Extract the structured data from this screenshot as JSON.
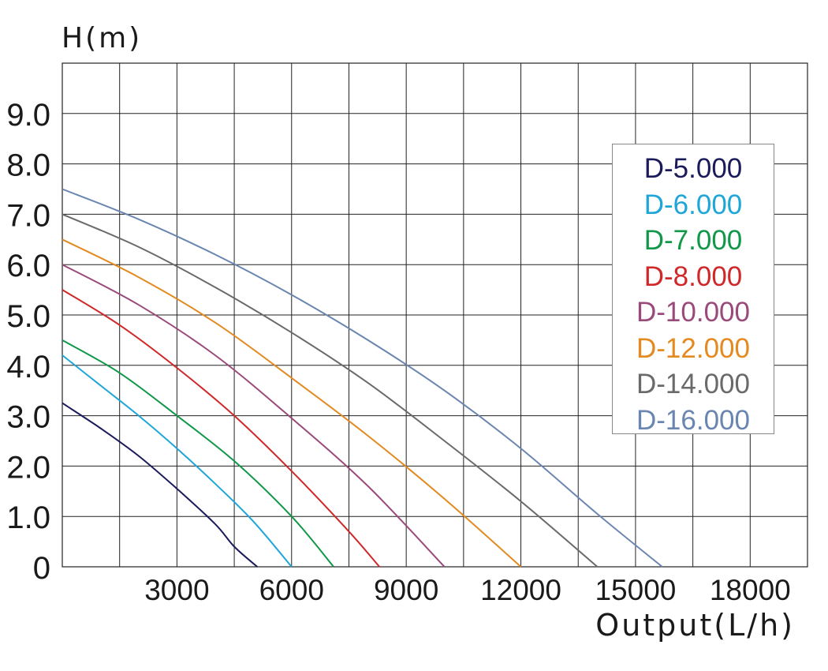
{
  "chart_data": {
    "type": "line",
    "ylabel": "H(m)",
    "xlabel": "Output(L/h)",
    "xlim": [
      0,
      19500
    ],
    "ylim": [
      0,
      10
    ],
    "x_ticks": [
      3000,
      6000,
      9000,
      12000,
      15000,
      18000
    ],
    "x_tick_labels": [
      "3000",
      "6000",
      "9000",
      "12000",
      "15000",
      "18000"
    ],
    "y_ticks": [
      0,
      1,
      2,
      3,
      4,
      5,
      6,
      7,
      8,
      9
    ],
    "y_tick_labels": [
      "0",
      "1.0",
      "2.0",
      "3.0",
      "4.0",
      "5.0",
      "6.0",
      "7.0",
      "8.0",
      "9.0"
    ],
    "grid": true,
    "legend_position": "top-right",
    "series": [
      {
        "name": "D-5.000",
        "color": "#1b1b5c",
        "x": [
          0,
          1000,
          2000,
          3000,
          4000,
          4500,
          5100
        ],
        "y": [
          3.25,
          2.75,
          2.2,
          1.55,
          0.85,
          0.4,
          0
        ]
      },
      {
        "name": "D-6.000",
        "color": "#1ea6d8",
        "x": [
          0,
          1000,
          2000,
          3000,
          4000,
          5000,
          6000
        ],
        "y": [
          4.2,
          3.6,
          3.0,
          2.35,
          1.65,
          0.9,
          0
        ]
      },
      {
        "name": "D-7.000",
        "color": "#109848",
        "x": [
          0,
          1500,
          3000,
          4500,
          6000,
          7100
        ],
        "y": [
          4.5,
          3.85,
          3.0,
          2.1,
          1.0,
          0
        ]
      },
      {
        "name": "D-8.000",
        "color": "#d02828",
        "x": [
          0,
          1500,
          3000,
          4500,
          6000,
          7500,
          8300
        ],
        "y": [
          5.5,
          4.8,
          3.95,
          3.0,
          1.9,
          0.7,
          0
        ]
      },
      {
        "name": "D-10.000",
        "color": "#9a4a7a",
        "x": [
          0,
          2000,
          4000,
          6000,
          8000,
          10000
        ],
        "y": [
          6.0,
          5.2,
          4.2,
          2.95,
          1.6,
          0
        ]
      },
      {
        "name": "D-12.000",
        "color": "#e38a20",
        "x": [
          0,
          2000,
          4000,
          6000,
          8000,
          10000,
          12000
        ],
        "y": [
          6.5,
          5.75,
          4.85,
          3.75,
          2.6,
          1.35,
          0
        ]
      },
      {
        "name": "D-14.000",
        "color": "#6a6a6a",
        "x": [
          0,
          2000,
          4000,
          6000,
          8000,
          10000,
          12000,
          14000
        ],
        "y": [
          7.0,
          6.35,
          5.55,
          4.65,
          3.65,
          2.5,
          1.3,
          0
        ]
      },
      {
        "name": "D-16.000",
        "color": "#6a86b0",
        "x": [
          0,
          2000,
          4000,
          6000,
          8000,
          10000,
          12000,
          14000,
          15700
        ],
        "y": [
          7.5,
          6.9,
          6.2,
          5.4,
          4.5,
          3.5,
          2.35,
          1.05,
          0
        ]
      }
    ]
  }
}
